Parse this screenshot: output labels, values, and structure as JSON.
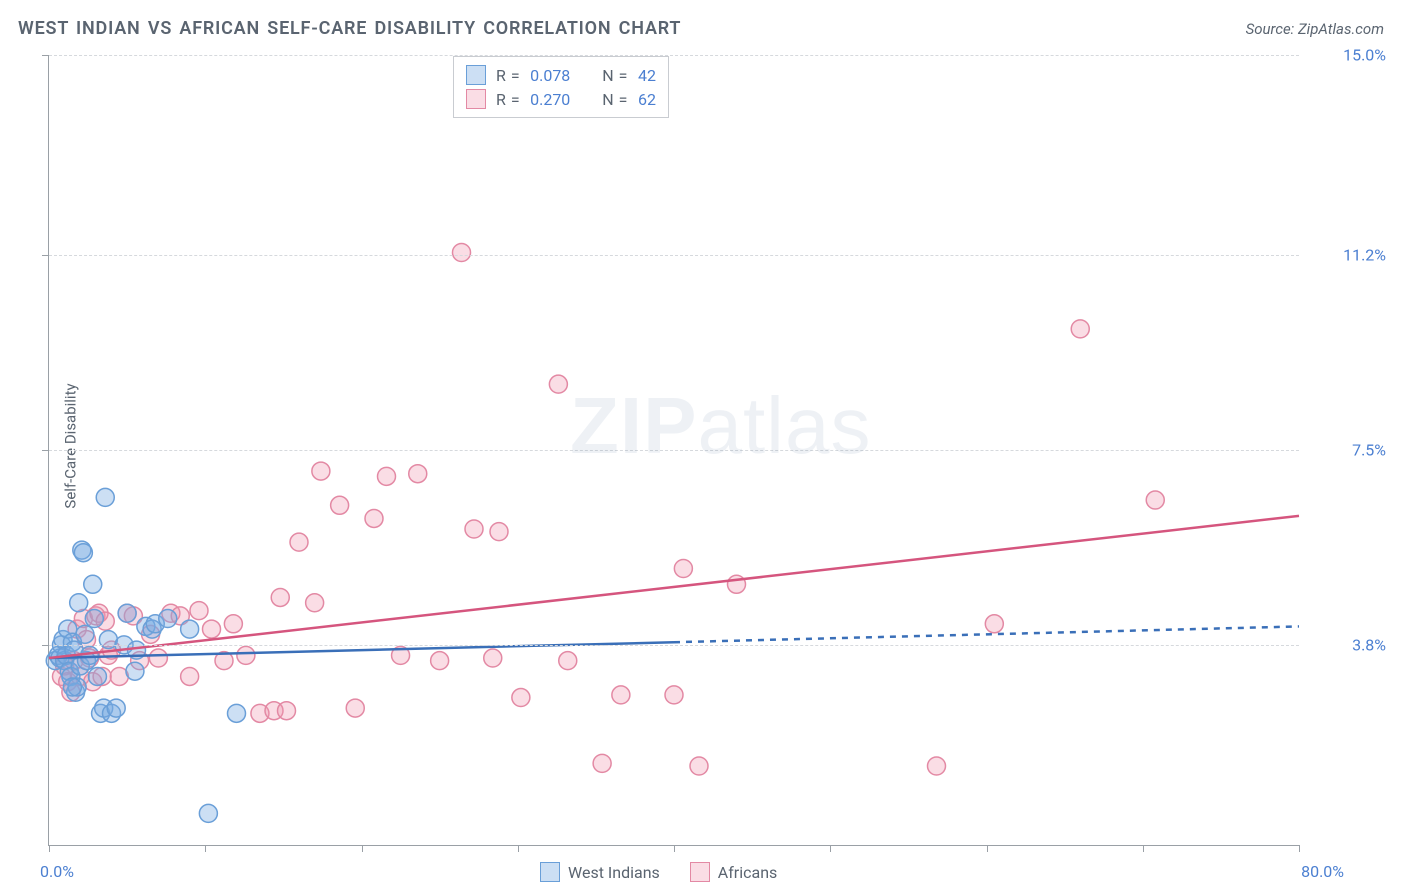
{
  "title": "WEST INDIAN VS AFRICAN SELF-CARE DISABILITY CORRELATION CHART",
  "source": "Source: ZipAtlas.com",
  "ylabel": "Self-Care Disability",
  "watermark": {
    "zip": "ZIP",
    "atlas": "atlas"
  },
  "chart": {
    "type": "scatter",
    "xlim": [
      0,
      80
    ],
    "ylim": [
      0,
      15
    ],
    "xtick_step": 10,
    "x_min_label": "0.0%",
    "x_max_label": "80.0%",
    "y_ticks": [
      3.8,
      7.5,
      11.2,
      15.0
    ],
    "y_tick_labels": [
      "3.8%",
      "7.5%",
      "11.2%",
      "15.0%"
    ],
    "gridline_color": "#d6d9dd",
    "axis_color": "#9aa0a6",
    "tick_label_color": "#4b7fd1",
    "background_color": "#ffffff",
    "marker_radius": 9,
    "marker_stroke_width": 1.5,
    "line_width": 2.5
  },
  "series": {
    "west_indians": {
      "label": "West Indians",
      "r_value": "0.078",
      "n_value": "42",
      "fill": "rgba(120, 170, 225, 0.38)",
      "stroke": "#6a9fd8",
      "line_color": "#3a6fb8",
      "regression": {
        "x0": 0,
        "y0": 3.55,
        "x1_solid": 40,
        "y1_solid": 3.85,
        "x1": 80,
        "y1": 4.15
      },
      "points": [
        [
          0.4,
          3.5
        ],
        [
          0.6,
          3.6
        ],
        [
          0.7,
          3.55
        ],
        [
          0.8,
          3.8
        ],
        [
          0.9,
          3.9
        ],
        [
          1.0,
          3.5
        ],
        [
          1.1,
          3.6
        ],
        [
          1.2,
          4.1
        ],
        [
          1.3,
          3.3
        ],
        [
          1.4,
          3.2
        ],
        [
          1.5,
          3.85
        ],
        [
          1.6,
          3.7
        ],
        [
          1.7,
          2.9
        ],
        [
          1.8,
          3.0
        ],
        [
          1.9,
          4.6
        ],
        [
          2.0,
          3.4
        ],
        [
          2.1,
          5.6
        ],
        [
          2.2,
          5.55
        ],
        [
          2.3,
          4.0
        ],
        [
          2.4,
          3.5
        ],
        [
          2.6,
          3.6
        ],
        [
          2.8,
          4.95
        ],
        [
          3.1,
          3.2
        ],
        [
          3.3,
          2.5
        ],
        [
          3.5,
          2.6
        ],
        [
          3.6,
          6.6
        ],
        [
          3.8,
          3.9
        ],
        [
          4.0,
          2.5
        ],
        [
          4.3,
          2.6
        ],
        [
          4.8,
          3.8
        ],
        [
          5.0,
          4.4
        ],
        [
          5.6,
          3.7
        ],
        [
          6.2,
          4.15
        ],
        [
          6.6,
          4.1
        ],
        [
          6.8,
          4.2
        ],
        [
          7.6,
          4.3
        ],
        [
          9.0,
          4.1
        ],
        [
          10.2,
          0.6
        ],
        [
          12.0,
          2.5
        ],
        [
          5.5,
          3.3
        ],
        [
          2.9,
          4.3
        ],
        [
          1.5,
          3.0
        ]
      ]
    },
    "africans": {
      "label": "Africans",
      "r_value": "0.270",
      "n_value": "62",
      "fill": "rgba(240, 150, 175, 0.32)",
      "stroke": "#e389a4",
      "line_color": "#d5557e",
      "regression": {
        "x0": 0,
        "y0": 3.55,
        "x1_solid": 80,
        "y1_solid": 6.25,
        "x1": 80,
        "y1": 6.25
      },
      "points": [
        [
          0.8,
          3.2
        ],
        [
          1.0,
          3.4
        ],
        [
          1.2,
          3.1
        ],
        [
          1.4,
          2.9
        ],
        [
          1.6,
          3.5
        ],
        [
          1.8,
          4.1
        ],
        [
          2.0,
          3.2
        ],
        [
          2.2,
          4.3
        ],
        [
          2.4,
          3.9
        ],
        [
          2.6,
          3.55
        ],
        [
          2.8,
          3.1
        ],
        [
          3.0,
          4.35
        ],
        [
          3.2,
          4.4
        ],
        [
          3.4,
          3.2
        ],
        [
          3.6,
          4.25
        ],
        [
          3.8,
          3.6
        ],
        [
          4.0,
          3.7
        ],
        [
          4.5,
          3.2
        ],
        [
          5.0,
          4.4
        ],
        [
          5.4,
          4.35
        ],
        [
          5.8,
          3.5
        ],
        [
          6.5,
          4.0
        ],
        [
          7.0,
          3.55
        ],
        [
          7.8,
          4.4
        ],
        [
          8.4,
          4.35
        ],
        [
          9.0,
          3.2
        ],
        [
          9.6,
          4.45
        ],
        [
          10.4,
          4.1
        ],
        [
          11.2,
          3.5
        ],
        [
          11.8,
          4.2
        ],
        [
          12.6,
          3.6
        ],
        [
          13.5,
          2.5
        ],
        [
          14.4,
          2.55
        ],
        [
          14.8,
          4.7
        ],
        [
          15.2,
          2.55
        ],
        [
          16.0,
          5.75
        ],
        [
          17.0,
          4.6
        ],
        [
          17.4,
          7.1
        ],
        [
          18.6,
          6.45
        ],
        [
          19.6,
          2.6
        ],
        [
          20.8,
          6.2
        ],
        [
          21.6,
          7.0
        ],
        [
          22.5,
          3.6
        ],
        [
          23.6,
          7.05
        ],
        [
          25.0,
          3.5
        ],
        [
          26.4,
          11.25
        ],
        [
          27.2,
          6.0
        ],
        [
          28.4,
          3.55
        ],
        [
          28.8,
          5.95
        ],
        [
          30.2,
          2.8
        ],
        [
          32.6,
          8.75
        ],
        [
          33.2,
          3.5
        ],
        [
          35.4,
          1.55
        ],
        [
          36.6,
          2.85
        ],
        [
          40.0,
          2.85
        ],
        [
          41.6,
          1.5
        ],
        [
          40.6,
          5.25
        ],
        [
          44.0,
          4.95
        ],
        [
          56.8,
          1.5
        ],
        [
          60.5,
          4.2
        ],
        [
          66.0,
          9.8
        ],
        [
          70.8,
          6.55
        ]
      ]
    }
  },
  "legend_top": {
    "r_label": "R =",
    "n_label": "N ="
  }
}
